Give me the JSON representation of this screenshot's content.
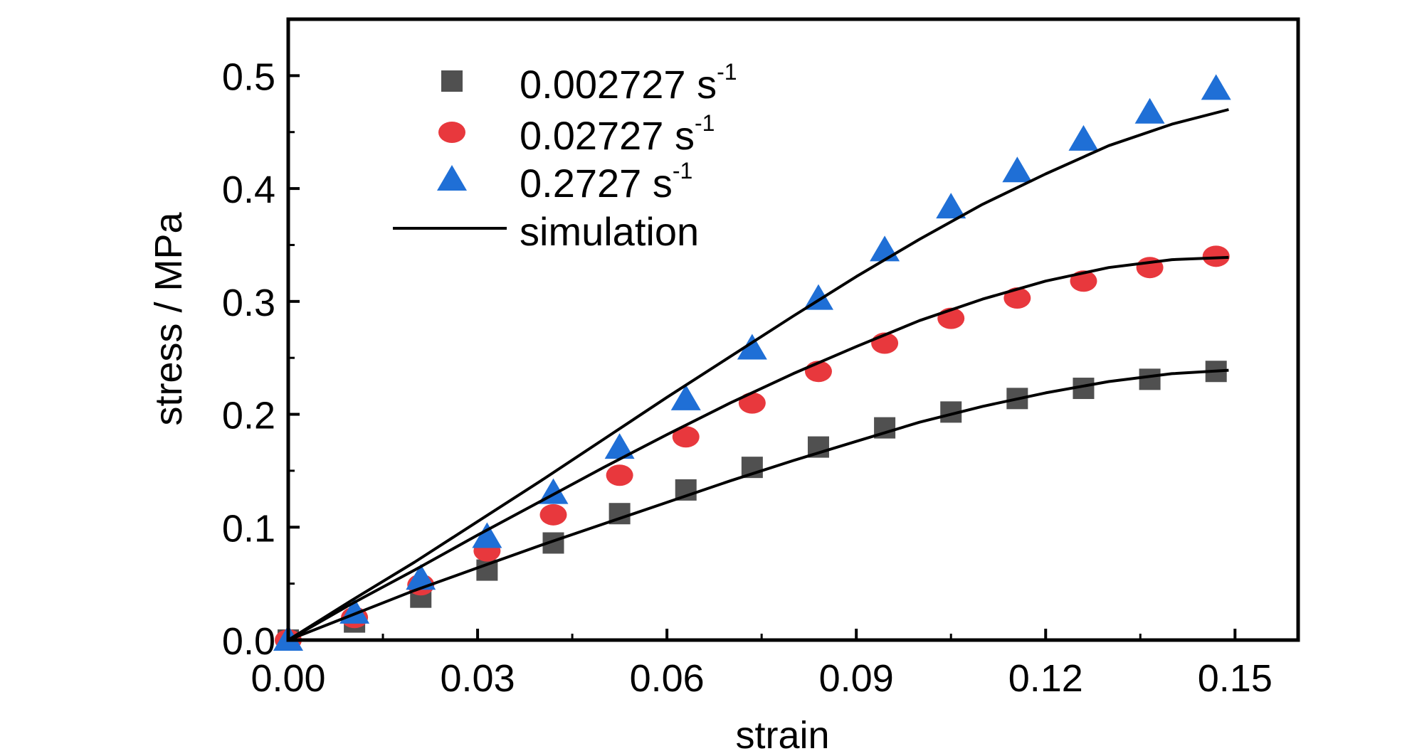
{
  "chart_data": {
    "type": "scatter",
    "title": "",
    "xlabel": "strain",
    "ylabel": "stress / MPa",
    "xlim": [
      0.0,
      0.16
    ],
    "ylim": [
      0.0,
      0.55
    ],
    "xticks": [
      0.0,
      0.03,
      0.06,
      0.09,
      0.12,
      0.15
    ],
    "xtick_labels": [
      "0.00",
      "0.03",
      "0.06",
      "0.09",
      "0.12",
      "0.15"
    ],
    "yticks": [
      0.0,
      0.1,
      0.2,
      0.3,
      0.4,
      0.5
    ],
    "ytick_labels": [
      "0.0",
      "0.1",
      "0.2",
      "0.3",
      "0.4",
      "0.5"
    ],
    "grid": false,
    "legend": "top-left",
    "series": [
      {
        "name": "0.002727 s",
        "name_sup": "-1",
        "marker": "square",
        "color": "#505050",
        "x": [
          0.0,
          0.0105,
          0.021,
          0.0315,
          0.042,
          0.0525,
          0.063,
          0.0735,
          0.084,
          0.0945,
          0.105,
          0.1155,
          0.126,
          0.1365,
          0.147
        ],
        "y": [
          0.0,
          0.016,
          0.038,
          0.062,
          0.086,
          0.112,
          0.133,
          0.153,
          0.171,
          0.188,
          0.202,
          0.214,
          0.223,
          0.231,
          0.238
        ]
      },
      {
        "name": "0.02727 s",
        "name_sup": "-1",
        "marker": "circle",
        "color": "#e8383d",
        "x": [
          0.0,
          0.0105,
          0.021,
          0.0315,
          0.042,
          0.0525,
          0.063,
          0.0735,
          0.084,
          0.0945,
          0.105,
          0.1155,
          0.126,
          0.1365,
          0.147
        ],
        "y": [
          0.0,
          0.02,
          0.049,
          0.079,
          0.111,
          0.146,
          0.18,
          0.21,
          0.238,
          0.263,
          0.285,
          0.303,
          0.318,
          0.33,
          0.34
        ]
      },
      {
        "name": "0.2727 s",
        "name_sup": "-1",
        "marker": "triangle",
        "color": "#1f6fd6",
        "x": [
          0.0,
          0.0105,
          0.021,
          0.0315,
          0.042,
          0.0525,
          0.063,
          0.0735,
          0.084,
          0.0945,
          0.105,
          0.1155,
          0.126,
          0.1365,
          0.147
        ],
        "y": [
          0.0,
          0.024,
          0.054,
          0.091,
          0.13,
          0.17,
          0.213,
          0.258,
          0.302,
          0.345,
          0.383,
          0.415,
          0.443,
          0.467,
          0.488
        ]
      }
    ],
    "simulation": {
      "name": "simulation",
      "color": "#000000",
      "curves": [
        {
          "x": [
            0.0,
            0.01,
            0.02,
            0.03,
            0.04,
            0.05,
            0.06,
            0.07,
            0.08,
            0.09,
            0.1,
            0.11,
            0.12,
            0.13,
            0.14,
            0.149
          ],
          "y": [
            0.0,
            0.022,
            0.044,
            0.064,
            0.084,
            0.103,
            0.122,
            0.141,
            0.159,
            0.176,
            0.193,
            0.207,
            0.219,
            0.229,
            0.236,
            0.239
          ]
        },
        {
          "x": [
            0.0,
            0.01,
            0.02,
            0.03,
            0.04,
            0.05,
            0.06,
            0.07,
            0.08,
            0.09,
            0.1,
            0.11,
            0.12,
            0.13,
            0.14,
            0.149
          ],
          "y": [
            0.0,
            0.032,
            0.062,
            0.093,
            0.123,
            0.153,
            0.182,
            0.21,
            0.236,
            0.26,
            0.283,
            0.302,
            0.318,
            0.33,
            0.337,
            0.339
          ]
        },
        {
          "x": [
            0.0,
            0.01,
            0.02,
            0.03,
            0.04,
            0.05,
            0.06,
            0.07,
            0.08,
            0.09,
            0.1,
            0.11,
            0.12,
            0.13,
            0.14,
            0.149
          ],
          "y": [
            0.0,
            0.035,
            0.069,
            0.105,
            0.141,
            0.178,
            0.215,
            0.251,
            0.287,
            0.322,
            0.355,
            0.386,
            0.413,
            0.438,
            0.457,
            0.47
          ]
        }
      ]
    }
  }
}
